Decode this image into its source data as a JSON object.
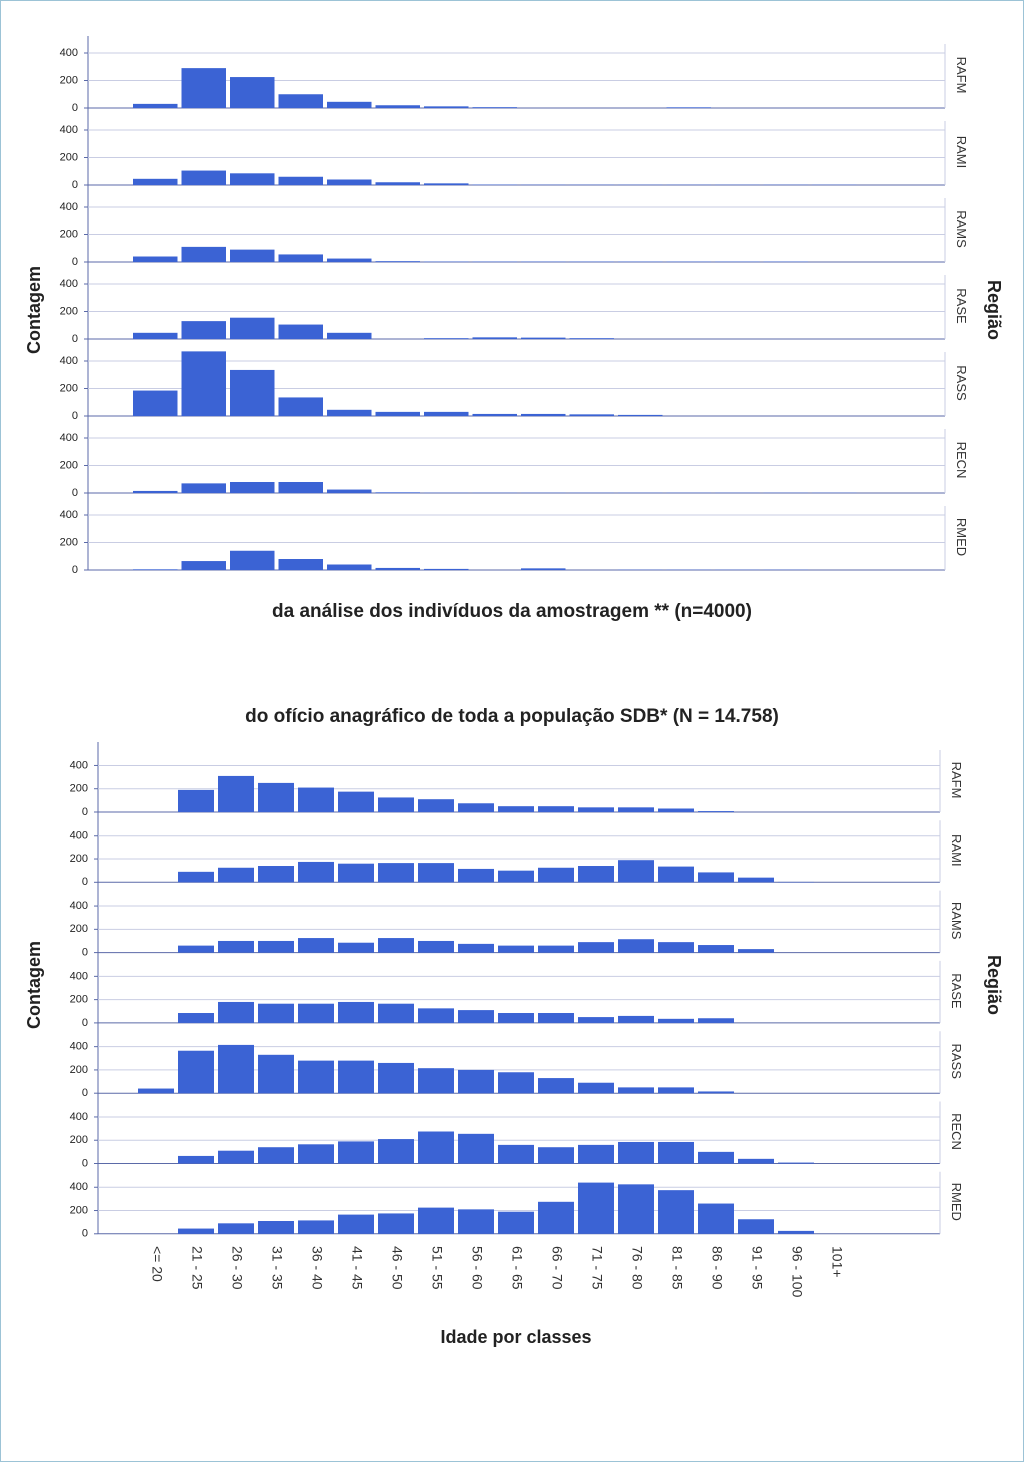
{
  "chart_data": [
    {
      "type": "bar",
      "title": "da análise dos indivíduos da amostragem ** (n=4000)",
      "y_label": "Contagem",
      "facet_label": "Região",
      "categories": [
        null,
        null,
        null,
        null,
        null,
        null,
        null,
        null,
        null,
        null,
        null,
        null,
        null,
        null,
        null,
        null,
        null
      ],
      "ylim": [
        0,
        480
      ],
      "yticks": [
        0,
        200,
        400
      ],
      "grid": true,
      "color": "#3b63d4",
      "series": [
        {
          "name": "RAFM",
          "values": [
            30,
            290,
            225,
            100,
            45,
            20,
            12,
            6,
            0,
            0,
            0,
            5,
            0,
            0,
            0,
            0,
            0
          ]
        },
        {
          "name": "RAMI",
          "values": [
            45,
            105,
            85,
            60,
            40,
            20,
            12,
            3,
            2,
            2,
            2,
            2,
            2,
            2,
            2,
            0,
            0
          ]
        },
        {
          "name": "RAMS",
          "values": [
            40,
            110,
            90,
            55,
            25,
            6,
            3,
            3,
            3,
            3,
            3,
            3,
            3,
            3,
            0,
            0,
            0
          ]
        },
        {
          "name": "RASE",
          "values": [
            45,
            130,
            155,
            105,
            45,
            0,
            6,
            12,
            10,
            6,
            0,
            0,
            0,
            0,
            0,
            0,
            0
          ]
        },
        {
          "name": "RASS",
          "values": [
            185,
            470,
            335,
            135,
            45,
            30,
            30,
            15,
            15,
            12,
            8,
            0,
            0,
            0,
            0,
            0,
            0
          ]
        },
        {
          "name": "RECN",
          "values": [
            15,
            70,
            80,
            80,
            25,
            5,
            2,
            2,
            2,
            2,
            2,
            2,
            2,
            2,
            2,
            0,
            0
          ]
        },
        {
          "name": "RMED",
          "values": [
            5,
            65,
            140,
            80,
            40,
            15,
            8,
            0,
            12,
            0,
            2,
            2,
            2,
            2,
            0,
            0,
            0
          ]
        }
      ]
    },
    {
      "type": "bar",
      "title": "do ofício anagráfico de toda a população SDB* (N = 14.758)",
      "y_label": "Contagem",
      "facet_label": "Região",
      "x_label": "Idade por classes",
      "categories": [
        "<= 20",
        "21 - 25",
        "26 - 30",
        "31 - 35",
        "36 - 40",
        "41 - 45",
        "46 - 50",
        "51 - 55",
        "56 - 60",
        "61 - 65",
        "66 - 70",
        "71 - 75",
        "76 - 80",
        "81 - 85",
        "86 - 90",
        "91 - 95",
        "96 - 100",
        "101+"
      ],
      "ylim": [
        0,
        550
      ],
      "yticks": [
        0,
        200,
        400
      ],
      "grid": true,
      "color": "#3b63d4",
      "series": [
        {
          "name": "RAFM",
          "values": [
            0,
            190,
            310,
            250,
            210,
            175,
            125,
            110,
            75,
            50,
            50,
            40,
            40,
            30,
            8,
            0,
            0,
            0
          ]
        },
        {
          "name": "RAMI",
          "values": [
            0,
            90,
            125,
            140,
            175,
            160,
            165,
            165,
            115,
            100,
            125,
            140,
            190,
            135,
            85,
            40,
            3,
            0
          ]
        },
        {
          "name": "RAMS",
          "values": [
            0,
            60,
            100,
            100,
            125,
            85,
            125,
            100,
            75,
            60,
            60,
            90,
            115,
            90,
            65,
            30,
            0,
            0
          ]
        },
        {
          "name": "RASE",
          "values": [
            0,
            85,
            180,
            165,
            165,
            180,
            165,
            125,
            110,
            85,
            85,
            50,
            60,
            35,
            40,
            0,
            0,
            0
          ]
        },
        {
          "name": "RASS",
          "values": [
            40,
            365,
            415,
            330,
            280,
            280,
            260,
            215,
            200,
            180,
            130,
            90,
            50,
            50,
            15,
            0,
            0,
            0
          ]
        },
        {
          "name": "RECN",
          "values": [
            0,
            65,
            110,
            140,
            165,
            190,
            210,
            275,
            255,
            160,
            140,
            160,
            185,
            185,
            100,
            40,
            8,
            0
          ]
        },
        {
          "name": "RMED",
          "values": [
            0,
            45,
            90,
            110,
            115,
            165,
            175,
            225,
            210,
            190,
            275,
            440,
            425,
            375,
            260,
            125,
            25,
            0
          ]
        }
      ]
    }
  ]
}
